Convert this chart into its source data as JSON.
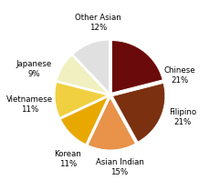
{
  "labels": [
    "Chinese",
    "Filipino",
    "Asian Indian",
    "Korean",
    "Vietnamese",
    "Japanese",
    "Other Asian"
  ],
  "sizes": [
    21,
    21,
    15,
    11,
    11,
    9,
    12
  ],
  "colors": [
    "#6b0a0a",
    "#7b3010",
    "#e8924a",
    "#e8a800",
    "#f0d040",
    "#f0f0c0",
    "#e0e0e0"
  ],
  "startangle": 90,
  "explode": [
    0.05,
    0.05,
    0.05,
    0.05,
    0.05,
    0.05,
    0.05
  ],
  "label_pcts": [
    "21%",
    "21%",
    "15%",
    "11%",
    "11%",
    "9%",
    "12%"
  ],
  "figsize": [
    2.41,
    2.09
  ],
  "dpi": 100
}
